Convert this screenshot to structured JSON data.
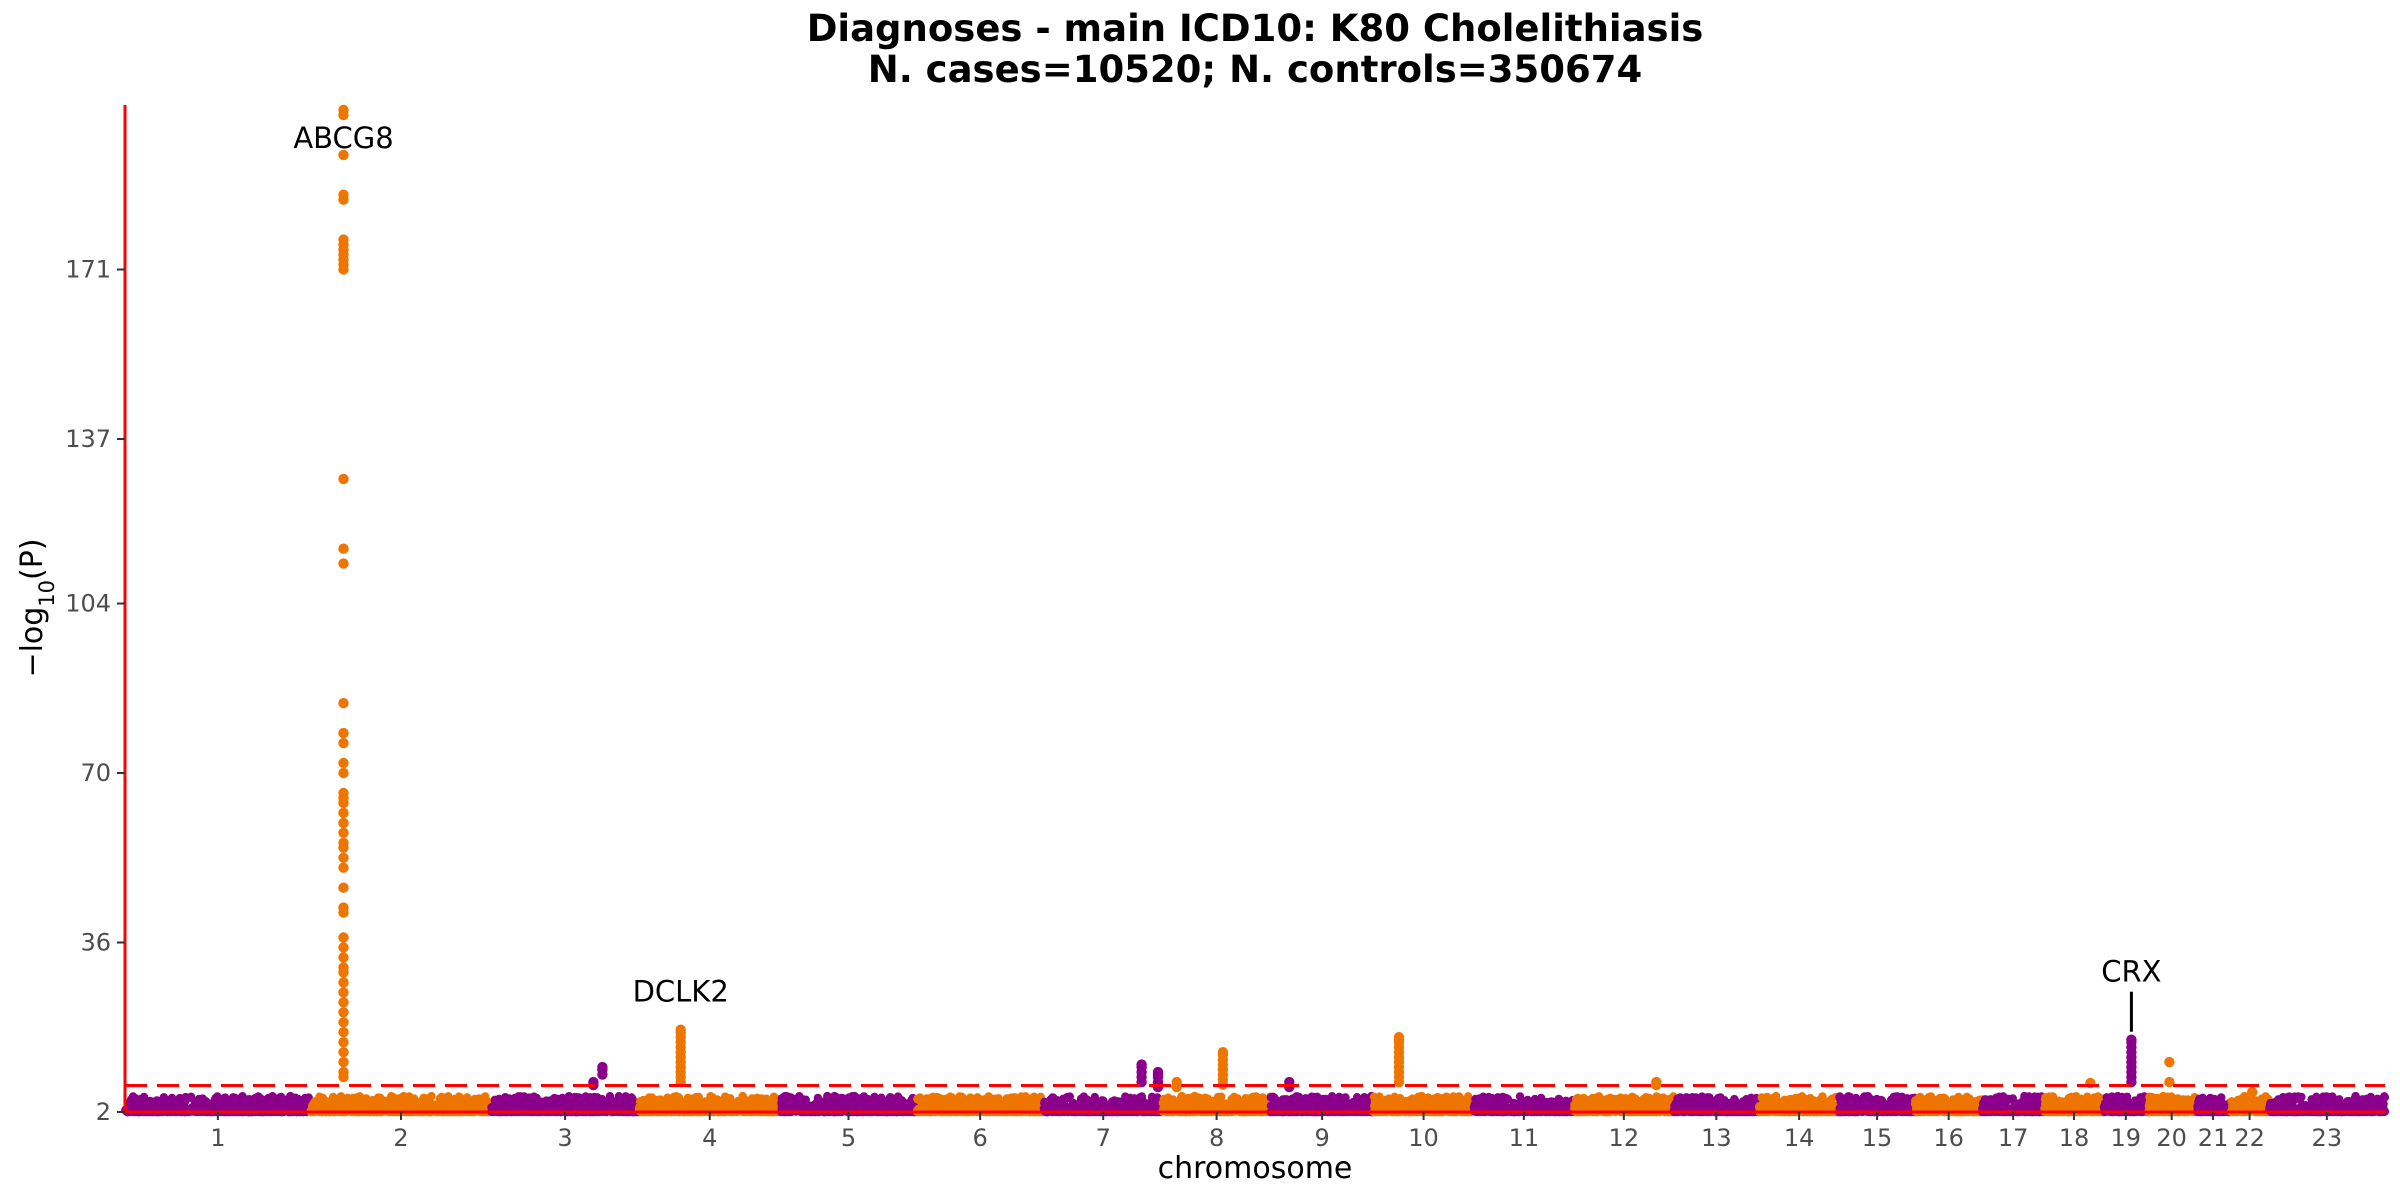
{
  "chart_data": {
    "type": "scatter",
    "title": "Diagnoses - main ICD10: K80 Cholelithiasis",
    "subtitle": "N. cases=10520; N. controls=350674",
    "xlabel": "chromosome",
    "ylabel": "−log10(P)",
    "ylim": [
      2,
      204
    ],
    "yticks": [
      2,
      36,
      70,
      104,
      137,
      171
    ],
    "xticks": [
      "1",
      "2",
      "3",
      "4",
      "5",
      "6",
      "7",
      "8",
      "9",
      "10",
      "11",
      "12",
      "13",
      "14",
      "15",
      "16",
      "17",
      "18",
      "19",
      "20",
      "21",
      "22",
      "23"
    ],
    "significance_line": 7.3,
    "grid": false,
    "legend": "none",
    "colors": {
      "odd_chromosomes": "#8B008B",
      "even_chromosomes": "#EE7600",
      "axis_line": "#FF0000",
      "threshold_line": "#FF0000"
    },
    "chromosome_spans": [
      {
        "chr": "1",
        "start": 0,
        "end": 249
      },
      {
        "chr": "2",
        "start": 249,
        "end": 491
      },
      {
        "chr": "3",
        "start": 491,
        "end": 689
      },
      {
        "chr": "4",
        "start": 689,
        "end": 879
      },
      {
        "chr": "5",
        "start": 879,
        "end": 1061
      },
      {
        "chr": "6",
        "start": 1061,
        "end": 1232
      },
      {
        "chr": "7",
        "start": 1232,
        "end": 1391
      },
      {
        "chr": "8",
        "start": 1391,
        "end": 1536
      },
      {
        "chr": "9",
        "start": 1536,
        "end": 1674
      },
      {
        "chr": "10",
        "start": 1674,
        "end": 1808
      },
      {
        "chr": "11",
        "start": 1808,
        "end": 1943
      },
      {
        "chr": "12",
        "start": 1943,
        "end": 2076
      },
      {
        "chr": "13",
        "start": 2076,
        "end": 2191
      },
      {
        "chr": "14",
        "start": 2191,
        "end": 2298
      },
      {
        "chr": "15",
        "start": 2298,
        "end": 2400
      },
      {
        "chr": "16",
        "start": 2400,
        "end": 2490
      },
      {
        "chr": "17",
        "start": 2490,
        "end": 2573
      },
      {
        "chr": "18",
        "start": 2573,
        "end": 2653
      },
      {
        "chr": "19",
        "start": 2653,
        "end": 2712
      },
      {
        "chr": "20",
        "start": 2712,
        "end": 2776
      },
      {
        "chr": "21",
        "start": 2776,
        "end": 2823
      },
      {
        "chr": "22",
        "start": 2823,
        "end": 2874
      },
      {
        "chr": "23",
        "start": 2874,
        "end": 3030
      }
    ],
    "peaks": [
      {
        "chr": "2",
        "pos": 293,
        "max": 203,
        "label": "ABCG8",
        "points": [
          203,
          202,
          194,
          186,
          185,
          177,
          176,
          175,
          174,
          173,
          172,
          171,
          129,
          115,
          112,
          84,
          78,
          76,
          72,
          70,
          66,
          65,
          64,
          62,
          60,
          58,
          56,
          55,
          53,
          51,
          47,
          43,
          42,
          37,
          35,
          33,
          31,
          30,
          28,
          26,
          24,
          22,
          20,
          18,
          16,
          14,
          12,
          10,
          9
        ]
      },
      {
        "chr": "3",
        "pos": 640,
        "max": 11,
        "label": "",
        "points": [
          11,
          10.5,
          9.5
        ]
      },
      {
        "chr": "3",
        "pos": 628,
        "max": 8,
        "label": "",
        "points": [
          8,
          7.4
        ]
      },
      {
        "chr": "4",
        "pos": 745,
        "max": 18.5,
        "label": "DCLK2",
        "points": [
          18.5,
          18,
          17,
          16,
          15,
          14,
          13,
          12,
          11,
          10,
          9,
          8
        ]
      },
      {
        "chr": "7",
        "pos": 1363,
        "max": 11.5,
        "label": "",
        "points": [
          11.5,
          11,
          10,
          9,
          8
        ]
      },
      {
        "chr": "7",
        "pos": 1385,
        "max": 10,
        "label": "",
        "points": [
          10,
          9.5,
          9,
          8,
          7
        ]
      },
      {
        "chr": "8",
        "pos": 1410,
        "max": 8,
        "label": "",
        "points": [
          8,
          7
        ]
      },
      {
        "chr": "8",
        "pos": 1472,
        "max": 14,
        "label": "",
        "points": [
          14,
          13.5,
          12.5,
          11.5,
          10.5,
          9.5,
          8.5,
          7.5
        ]
      },
      {
        "chr": "9",
        "pos": 1561,
        "max": 8,
        "label": "",
        "points": [
          8,
          7
        ]
      },
      {
        "chr": "10",
        "pos": 1708,
        "max": 17,
        "label": "",
        "points": [
          17,
          16.5,
          16,
          15,
          14,
          13,
          12,
          11,
          10,
          9,
          8
        ]
      },
      {
        "chr": "12",
        "pos": 2053,
        "max": 8,
        "label": "",
        "points": [
          8,
          7.4
        ]
      },
      {
        "chr": "18",
        "pos": 2635,
        "max": 7.8,
        "label": "",
        "points": [
          7.8
        ]
      },
      {
        "chr": "19",
        "pos": 2690,
        "max": 16.5,
        "label": "CRX",
        "points": [
          16.5,
          16,
          15,
          14,
          13,
          12,
          11,
          10,
          9,
          8
        ]
      },
      {
        "chr": "20",
        "pos": 2741,
        "max": 12,
        "label": "",
        "points": [
          12,
          8
        ]
      },
      {
        "chr": "22",
        "pos": 2852,
        "max": 6,
        "label": "",
        "points": [
          6
        ]
      }
    ]
  }
}
